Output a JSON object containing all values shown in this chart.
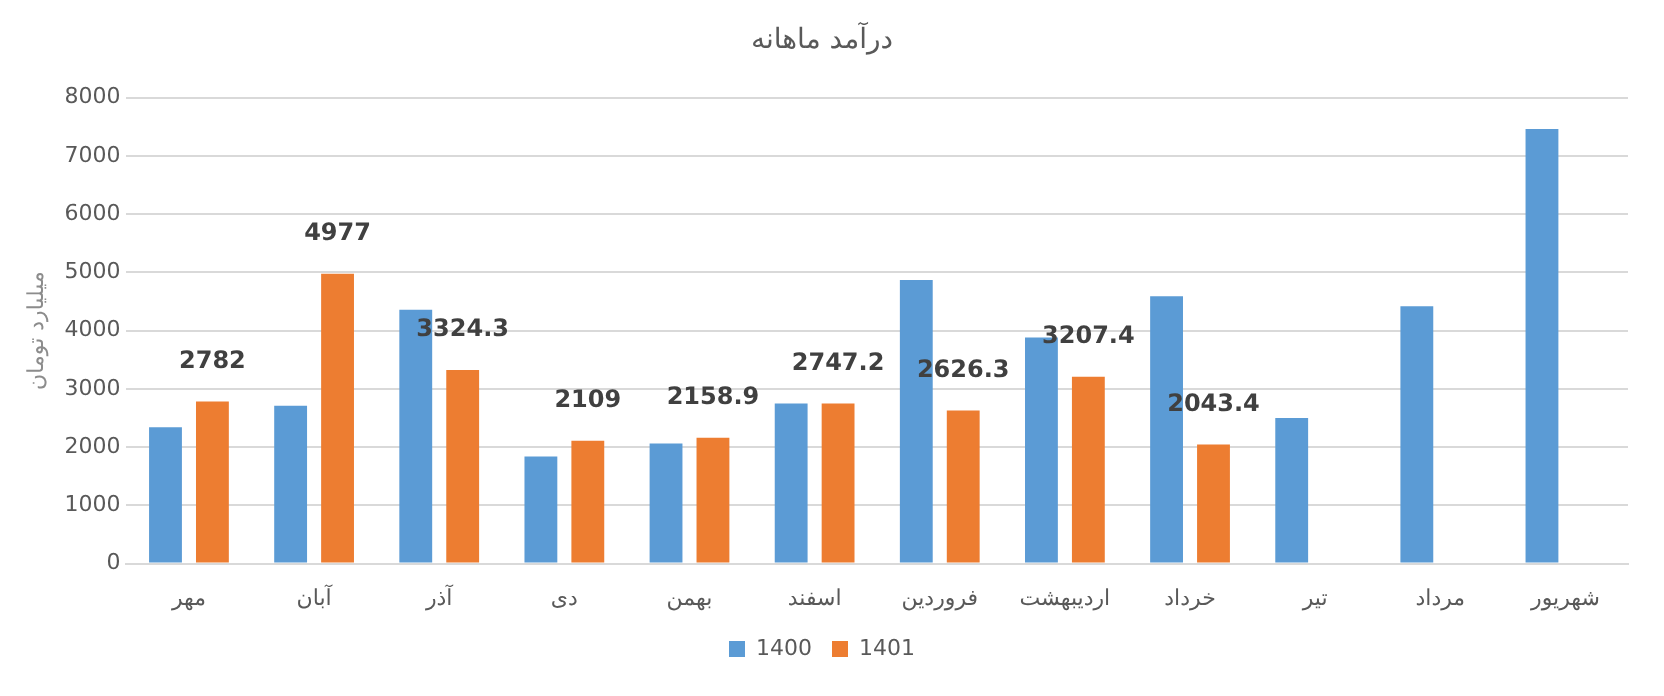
{
  "chart_data": {
    "type": "bar",
    "title": "درآمد ماهانه",
    "ylabel": "میلیارد تومان",
    "categories": [
      "مهر",
      "آبان",
      "آذر",
      "دی",
      "بهمن",
      "اسفند",
      "فروردین",
      "اردیبهشت",
      "خرداد",
      "تیر",
      "مرداد",
      "شهریور"
    ],
    "series": [
      {
        "name": "1400",
        "color": "#5b9bd5",
        "values": [
          2340,
          2710,
          4360,
          1840,
          2060,
          2750,
          4870,
          3880,
          4590,
          2500,
          4420,
          7460
        ]
      },
      {
        "name": "1401",
        "color": "#ed7d31",
        "values": [
          2782,
          4977,
          3324.3,
          2109,
          2158.9,
          2747.2,
          2626.3,
          3207.4,
          2043.4,
          null,
          null,
          null
        ],
        "value_labels": [
          "2782",
          "4977",
          "3324.3",
          "2109",
          "2158.9",
          "2747.2",
          "2626.3",
          "3207.4",
          "2043.4",
          null,
          null,
          null
        ]
      }
    ],
    "ylim": [
      0,
      8000
    ],
    "yticks": [
      0,
      1000,
      2000,
      3000,
      4000,
      5000,
      6000,
      7000,
      8000
    ],
    "grid": "y",
    "legend": "bottom"
  }
}
